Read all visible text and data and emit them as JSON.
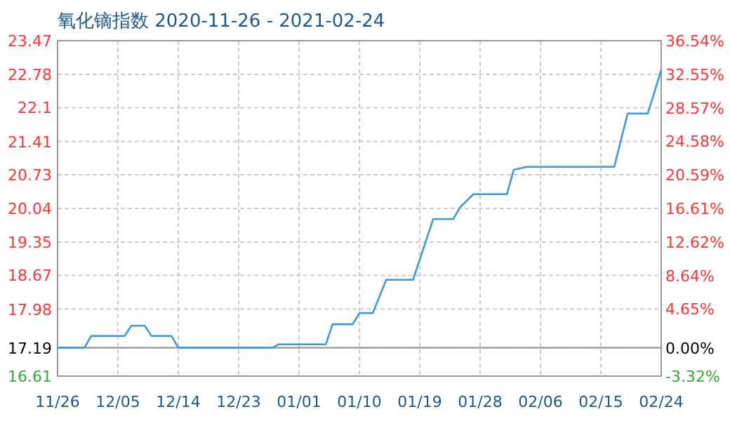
{
  "chart_data": {
    "type": "line",
    "title": "氧化镝指数 2020-11-26 - 2021-02-24",
    "x": [
      "2020-11-26",
      "2020-11-30",
      "2020-12-01",
      "2020-12-06",
      "2020-12-07",
      "2020-12-09",
      "2020-12-10",
      "2020-12-13",
      "2020-12-14",
      "2020-12-28",
      "2020-12-29",
      "2021-01-05",
      "2021-01-06",
      "2021-01-09",
      "2021-01-10",
      "2021-01-12",
      "2021-01-14",
      "2021-01-18",
      "2021-01-21",
      "2021-01-24",
      "2021-01-25",
      "2021-01-27",
      "2021-02-01",
      "2021-02-02",
      "2021-02-04",
      "2021-02-17",
      "2021-02-19",
      "2021-02-22",
      "2021-02-24"
    ],
    "series": [
      {
        "color": "#3d9ad8",
        "values": [
          17.19,
          17.19,
          17.43,
          17.43,
          17.64,
          17.64,
          17.43,
          17.43,
          17.19,
          17.19,
          17.26,
          17.26,
          17.67,
          17.67,
          17.9,
          17.9,
          18.58,
          18.58,
          19.82,
          19.82,
          20.06,
          20.33,
          20.33,
          20.83,
          20.89,
          20.89,
          21.98,
          21.98,
          22.87
        ]
      }
    ],
    "xlim": [
      "2020-11-26",
      "2021-02-24"
    ],
    "xticks": [
      {
        "value": "2020-11-26",
        "label": "11/26"
      },
      {
        "value": "2020-12-05",
        "label": "12/05"
      },
      {
        "value": "2020-12-14",
        "label": "12/14"
      },
      {
        "value": "2020-12-23",
        "label": "12/23"
      },
      {
        "value": "2021-01-01",
        "label": "01/01"
      },
      {
        "value": "2021-01-10",
        "label": "01/10"
      },
      {
        "value": "2021-01-19",
        "label": "01/19"
      },
      {
        "value": "2021-01-28",
        "label": "01/28"
      },
      {
        "value": "2021-02-06",
        "label": "02/06"
      },
      {
        "value": "2021-02-15",
        "label": "02/15"
      },
      {
        "value": "2021-02-24",
        "label": "02/24"
      }
    ],
    "ylim": [
      16.61,
      23.47
    ],
    "yticks": [
      16.61,
      17.19,
      17.98,
      18.67,
      19.35,
      20.04,
      20.73,
      21.41,
      22.1,
      22.78,
      23.47
    ],
    "y2lim": [
      -3.32,
      36.54
    ],
    "y2ticks": [
      {
        "value": -3.32,
        "label": "-3.32%"
      },
      {
        "value": 0,
        "label": "0.00%"
      },
      {
        "value": 4.65,
        "label": "4.65%"
      },
      {
        "value": 8.64,
        "label": "8.64%"
      },
      {
        "value": 12.62,
        "label": "12.62%"
      },
      {
        "value": 16.61,
        "label": "16.61%"
      },
      {
        "value": 20.59,
        "label": "20.59%"
      },
      {
        "value": 24.58,
        "label": "24.58%"
      },
      {
        "value": 28.57,
        "label": "28.57%"
      },
      {
        "value": 32.55,
        "label": "32.55%"
      },
      {
        "value": 36.54,
        "label": "36.54%"
      }
    ],
    "ref_lines": [
      {
        "axis": "y",
        "value": 17.19,
        "color": "#999999"
      }
    ],
    "grid": true
  }
}
